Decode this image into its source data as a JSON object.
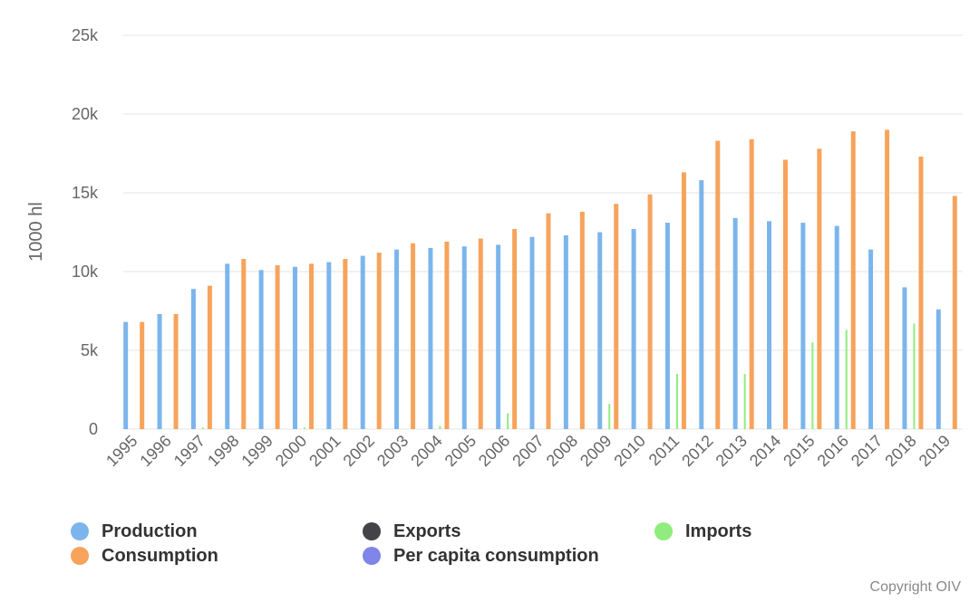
{
  "chart_data": {
    "type": "bar",
    "title": "",
    "xlabel": "",
    "ylabel": "1000 hl",
    "ylim": [
      0,
      25000
    ],
    "yticks": [
      0,
      5000,
      10000,
      15000,
      20000,
      25000
    ],
    "ytick_labels": [
      "0",
      "5k",
      "10k",
      "15k",
      "20k",
      "25k"
    ],
    "grid": true,
    "legend_position": "bottom",
    "categories": [
      "1995",
      "1996",
      "1997",
      "1998",
      "1999",
      "2000",
      "2001",
      "2002",
      "2003",
      "2004",
      "2005",
      "2006",
      "2007",
      "2008",
      "2009",
      "2010",
      "2011",
      "2012",
      "2013",
      "2014",
      "2015",
      "2016",
      "2017",
      "2018",
      "2019"
    ],
    "series": [
      {
        "name": "Production",
        "color": "#7cb5ec",
        "values": [
          6800,
          7300,
          8900,
          10500,
          10100,
          10300,
          10600,
          11000,
          11400,
          11500,
          11600,
          11700,
          12200,
          12300,
          12500,
          12700,
          13100,
          15800,
          13400,
          13200,
          13100,
          12900,
          11400,
          9000,
          7600
        ]
      },
      {
        "name": "Exports",
        "color": "#434348",
        "values": [
          0,
          0,
          0,
          0,
          0,
          0,
          0,
          0,
          0,
          0,
          0,
          0,
          0,
          0,
          0,
          0,
          0,
          0,
          0,
          0,
          0,
          0,
          0,
          0,
          0
        ]
      },
      {
        "name": "Imports",
        "color": "#90ed7d",
        "values": [
          0,
          0,
          100,
          0,
          0,
          100,
          0,
          0,
          0,
          200,
          0,
          1000,
          0,
          0,
          1600,
          0,
          3500,
          0,
          3500,
          0,
          5500,
          6300,
          0,
          6700,
          0
        ]
      },
      {
        "name": "Consumption",
        "color": "#f7a35c",
        "values": [
          6800,
          7300,
          9100,
          10800,
          10400,
          10500,
          10800,
          11200,
          11800,
          11900,
          12100,
          12700,
          13700,
          13800,
          14300,
          14900,
          16300,
          18300,
          18400,
          17100,
          17800,
          18900,
          19000,
          17300,
          14800
        ]
      },
      {
        "name": "Per capita consumption",
        "color": "#8085e9",
        "values": [
          0,
          0,
          0,
          0,
          0,
          0,
          0,
          0,
          0,
          0,
          0,
          0,
          0,
          0,
          0,
          0,
          0,
          0,
          0,
          0,
          0,
          0,
          0,
          0,
          0
        ]
      }
    ]
  },
  "legend": {
    "items": [
      {
        "label": "Production",
        "color": "#7cb5ec"
      },
      {
        "label": "Exports",
        "color": "#434348"
      },
      {
        "label": "Imports",
        "color": "#90ed7d"
      },
      {
        "label": "Consumption",
        "color": "#f7a35c"
      },
      {
        "label": "Per capita consumption",
        "color": "#8085e9"
      }
    ]
  },
  "credit": "Copyright OIV"
}
